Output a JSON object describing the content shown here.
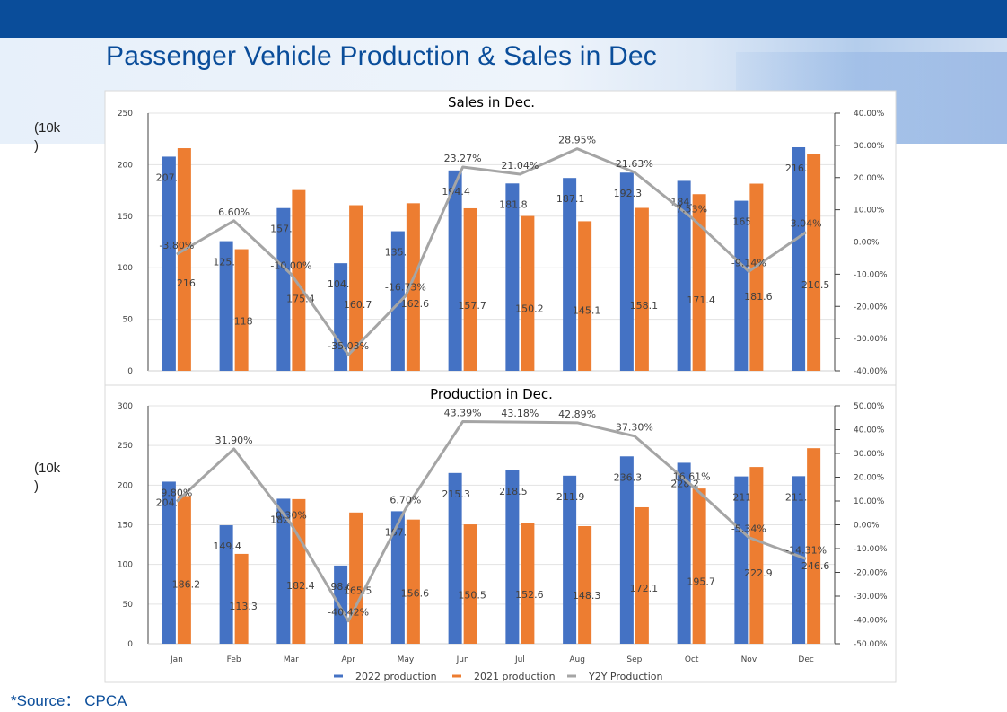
{
  "header": {
    "title": "Passenger Vehicle Production & Sales in Dec"
  },
  "units": {
    "sales": "(10k\n)",
    "production": "(10k\n)"
  },
  "footer": {
    "source": "*Source： CPCA"
  },
  "colors": {
    "blue": "#4472c4",
    "orange": "#ed7d31",
    "gray": "#a5a5a5",
    "brand": "#0a4d9a"
  },
  "chart_data": [
    {
      "type": "bar",
      "title": "Sales in Dec.",
      "categories": [
        "Jan",
        "Feb",
        "Mar",
        "Apr",
        "May",
        "Jun",
        "Jul",
        "Aug",
        "Sep",
        "Oct",
        "Nov",
        "Dec"
      ],
      "series": [
        {
          "values": [
            207.8,
            125.8,
            157.9,
            104.4,
            135.4,
            194.4,
            181.8,
            187.1,
            192.3,
            184.3,
            165,
            216.9
          ]
        },
        {
          "values": [
            216,
            118,
            175.4,
            160.7,
            162.6,
            157.7,
            150.2,
            145.1,
            158.1,
            171.4,
            181.6,
            210.5
          ]
        }
      ],
      "line": {
        "axis": "secondary",
        "values": [
          -3.8,
          6.6,
          -10.0,
          -35.03,
          -16.73,
          23.27,
          21.04,
          28.95,
          21.63,
          7.53,
          -9.14,
          3.04
        ],
        "labels": [
          "-3.80%",
          "6.60%",
          "-10.00%",
          "-35.03%",
          "-16.73%",
          "23.27%",
          "21.04%",
          "28.95%",
          "21.63%",
          "7.53%",
          "-9.14%",
          "3.04%"
        ]
      },
      "ylim": [
        0,
        250
      ],
      "yticks": [
        "0",
        "50",
        "100",
        "150",
        "200",
        "250"
      ],
      "y2lim": [
        -40,
        40
      ],
      "y2ticks": [
        "-40.00%",
        "-30.00%",
        "-20.00%",
        "-10.00%",
        "0.00%",
        "10.00%",
        "20.00%",
        "30.00%",
        "40.00%"
      ],
      "grid": true
    },
    {
      "type": "bar",
      "title": "Production in Dec.",
      "categories": [
        "Jan",
        "Feb",
        "Mar",
        "Apr",
        "May",
        "Jun",
        "Jul",
        "Aug",
        "Sep",
        "Oct",
        "Nov",
        "Dec"
      ],
      "series": [
        {
          "name": "2022 production",
          "values": [
            204.4,
            149.4,
            182.9,
            98.6,
            167.1,
            215.3,
            218.5,
            211.9,
            236.3,
            228.2,
            211,
            211.3
          ]
        },
        {
          "name": "2021 production",
          "values": [
            186.2,
            113.3,
            182.4,
            165.5,
            156.6,
            150.5,
            152.6,
            148.3,
            172.1,
            195.7,
            222.9,
            246.6
          ]
        }
      ],
      "line": {
        "name": "Y2Y Production",
        "axis": "secondary",
        "values": [
          9.8,
          31.9,
          0.3,
          -40.42,
          6.7,
          43.39,
          43.18,
          42.89,
          37.3,
          16.61,
          -5.34,
          -14.31
        ],
        "labels": [
          "9.80%",
          "31.90%",
          "0.30%",
          "-40.42%",
          "6.70%",
          "43.39%",
          "43.18%",
          "42.89%",
          "37.30%",
          "16.61%",
          "-5.34%",
          "-14.31%"
        ]
      },
      "ylim": [
        0,
        300
      ],
      "yticks": [
        "0",
        "50",
        "100",
        "150",
        "200",
        "250",
        "300"
      ],
      "y2lim": [
        -50,
        50
      ],
      "y2ticks": [
        "-50.00%",
        "-40.00%",
        "-30.00%",
        "-20.00%",
        "-10.00%",
        "0.00%",
        "10.00%",
        "20.00%",
        "30.00%",
        "40.00%",
        "50.00%"
      ],
      "grid": true,
      "legend": "bottom"
    }
  ]
}
